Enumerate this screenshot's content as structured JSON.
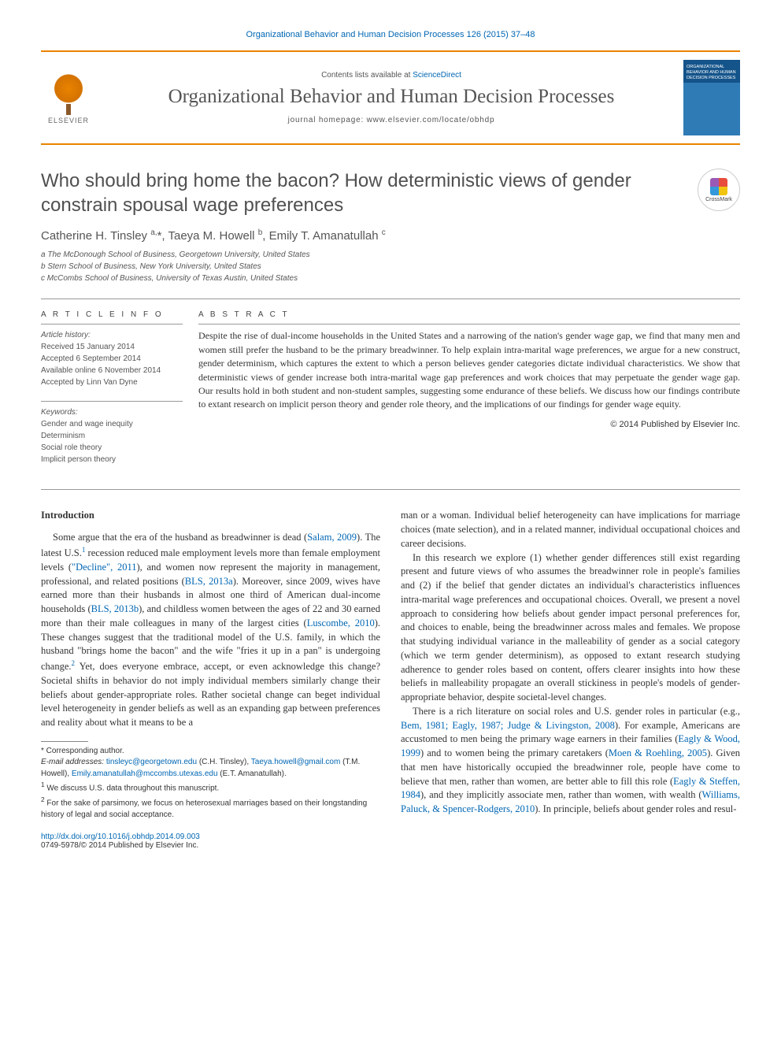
{
  "citation": "Organizational Behavior and Human Decision Processes 126 (2015) 37–48",
  "header": {
    "contents_prefix": "Contents lists available at ",
    "contents_link": "ScienceDirect",
    "journal": "Organizational Behavior and Human Decision Processes",
    "homepage": "journal homepage: www.elsevier.com/locate/obhdp",
    "publisher": "ELSEVIER",
    "cover_text": "ORGANIZATIONAL BEHAVIOR AND HUMAN DECISION PROCESSES"
  },
  "crossmark": "CrossMark",
  "title": "Who should bring home the bacon? How deterministic views of gender constrain spousal wage preferences",
  "authors_html": "Catherine H. Tinsley <sup>a,</sup>*, Taeya M. Howell <sup>b</sup>, Emily T. Amanatullah <sup>c</sup>",
  "affiliations": {
    "a": "a The McDonough School of Business, Georgetown University, United States",
    "b": "b Stern School of Business, New York University, United States",
    "c": "c McCombs School of Business, University of Texas Austin, United States"
  },
  "article_info": {
    "heading": "A R T I C L E   I N F O",
    "history_label": "Article history:",
    "received": "Received 15 January 2014",
    "accepted": "Accepted 6 September 2014",
    "online": "Available online 6 November 2014",
    "editor": "Accepted by Linn Van Dyne",
    "keywords_label": "Keywords:",
    "keywords": [
      "Gender and wage inequity",
      "Determinism",
      "Social role theory",
      "Implicit person theory"
    ]
  },
  "abstract": {
    "heading": "A B S T R A C T",
    "text": "Despite the rise of dual-income households in the United States and a narrowing of the nation's gender wage gap, we find that many men and women still prefer the husband to be the primary breadwinner. To help explain intra-marital wage preferences, we argue for a new construct, gender determinism, which captures the extent to which a person believes gender categories dictate individual characteristics. We show that deterministic views of gender increase both intra-marital wage gap preferences and work choices that may perpetuate the gender wage gap. Our results hold in both student and non-student samples, suggesting some endurance of these beliefs. We discuss how our findings contribute to extant research on implicit person theory and gender role theory, and the implications of our findings for gender wage equity.",
    "copyright": "© 2014 Published by Elsevier Inc."
  },
  "body": {
    "intro_heading": "Introduction",
    "p1a": "Some argue that the era of the husband as breadwinner is dead (",
    "p1_ref1": "Salam, 2009",
    "p1b": "). The latest U.S.",
    "p1c": " recession reduced male employment levels more than female employment levels (",
    "p1_ref2": "\"Decline\", 2011",
    "p1d": "), and women now represent the majority in management, professional, and related positions (",
    "p1_ref3": "BLS, 2013a",
    "p1e": "). Moreover, since 2009, wives have earned more than their husbands in almost one third of American dual-income households (",
    "p1_ref4": "BLS, 2013b",
    "p1f": "), and childless women between the ages of 22 and 30 earned more than their male colleagues in many of the largest cities (",
    "p1_ref5": "Luscombe, 2010",
    "p1g": "). These changes suggest that the traditional model of the U.S. family, in which the husband \"brings home the bacon\" and the wife \"fries it up in a pan\" is undergoing change.",
    "p1h": " Yet, does everyone embrace, accept, or even acknowledge this change? Societal shifts in behavior do not imply individual members similarly change their beliefs about gender-appropriate roles. Rather societal change can beget individual level heterogeneity in gender beliefs as well as an expanding gap between preferences and reality about what it means to be a ",
    "p1i": "man or a woman. Individual belief heterogeneity can have implications for marriage choices (mate selection), and in a related manner, individual occupational choices and career decisions.",
    "p2": "In this research we explore (1) whether gender differences still exist regarding present and future views of who assumes the breadwinner role in people's families and (2) if the belief that gender dictates an individual's characteristics influences intra-marital wage preferences and occupational choices. Overall, we present a novel approach to considering how beliefs about gender impact personal preferences for, and choices to enable, being the breadwinner across males and females. We propose that studying individual variance in the malleability of gender as a social category (which we term gender determinism), as opposed to extant research studying adherence to gender roles based on content, offers clearer insights into how these beliefs in malleability propagate an overall stickiness in people's models of gender-appropriate behavior, despite societal-level changes.",
    "p3a": "There is a rich literature on social roles and U.S. gender roles in particular (e.g., ",
    "p3_ref1": "Bem, 1981; Eagly, 1987; Judge & Livingston, 2008",
    "p3b": "). For example, Americans are accustomed to men being the primary wage earners in their families (",
    "p3_ref2": "Eagly & Wood, 1999",
    "p3c": ") and to women being the primary caretakers (",
    "p3_ref3": "Moen & Roehling, 2005",
    "p3d": "). Given that men have historically occupied the breadwinner role, people have come to believe that men, rather than women, are better able to fill this role (",
    "p3_ref4": "Eagly & Steffen, 1984",
    "p3e": "), and they implicitly associate men, rather than women, with wealth (",
    "p3_ref5": "Williams, Paluck, & Spencer-Rodgers, 2010",
    "p3f": "). In principle, beliefs about gender roles and resul-"
  },
  "correspondence": {
    "star": "* Corresponding author.",
    "email_label": "E-mail addresses: ",
    "e1": "tinsleyc@georgetown.edu",
    "e1_who": " (C.H. Tinsley), ",
    "e2": "Taeya.howell@gmail.com",
    "e2_who": " (T.M. Howell), ",
    "e3": "Emily.amanatullah@mccombs.utexas.edu",
    "e3_who": " (E.T. Amanatullah)."
  },
  "footnotes": {
    "fn1": "We discuss U.S. data throughout this manuscript.",
    "fn2": "For the sake of parsimony, we focus on heterosexual marriages based on their longstanding history of legal and social acceptance."
  },
  "footer": {
    "doi": "http://dx.doi.org/10.1016/j.obhdp.2014.09.003",
    "issn_line": "0749-5978/© 2014 Published by Elsevier Inc."
  },
  "colors": {
    "accent": "#e98300",
    "link": "#0066b3",
    "text_gray": "#555555"
  }
}
